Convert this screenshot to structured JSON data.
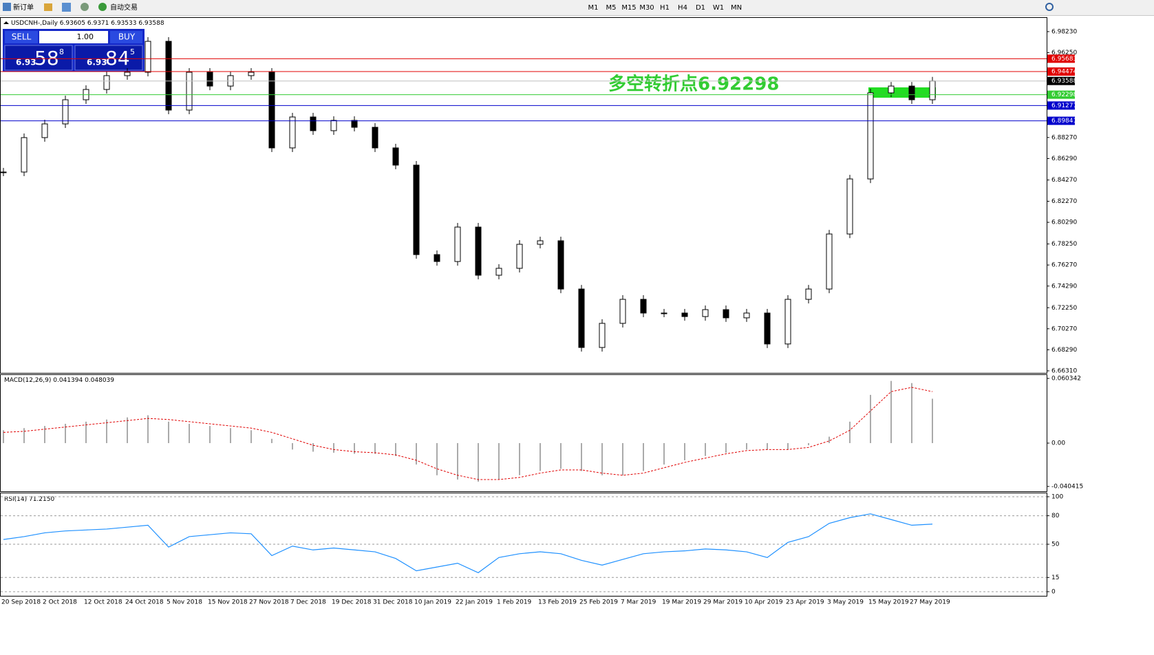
{
  "toolbar": {
    "new_order": "新订单",
    "auto_trading": "自动交易",
    "timeframes": [
      "M1",
      "M5",
      "M15",
      "M30",
      "H1",
      "H4",
      "D1",
      "W1",
      "MN"
    ]
  },
  "trade_panel": {
    "sell": "SELL",
    "lots": "1.00",
    "buy": "BUY",
    "sell_price": [
      "6.93",
      "58",
      "8"
    ],
    "buy_price": [
      "6.93",
      "84",
      "5"
    ]
  },
  "chart_data": {
    "type": "candlestick",
    "symbol": "USDCNH-,Daily",
    "ohlc": [
      6.93605,
      6.9371,
      6.93533,
      6.93588
    ],
    "annotation": "多空转折点6.92298",
    "closes": [
      6.8502,
      6.8826,
      6.8955,
      6.9182,
      6.9279,
      6.9409,
      6.9441,
      6.9732,
      6.9085,
      6.9441,
      6.9311,
      6.9409,
      6.9441,
      6.8729,
      6.902,
      6.8891,
      6.8988,
      6.8923,
      6.8729,
      6.8567,
      6.7725,
      6.766,
      6.7984,
      6.7531,
      6.7596,
      6.7822,
      6.7855,
      6.7401,
      6.6851,
      6.7078,
      6.7304,
      6.7175,
      6.7175,
      6.7142,
      6.7207,
      6.713,
      6.7175,
      6.6884,
      6.7304,
      6.7401,
      6.7919,
      6.8437,
      6.9247,
      6.9311,
      6.9182,
      6.93588
    ],
    "ylim": [
      6.6631,
      6.9823
    ],
    "yticks": [
      {
        "value": 6.9823,
        "label": "6.98230"
      },
      {
        "value": 6.9625,
        "label": "6.96250"
      },
      {
        "value": 6.8827,
        "label": "6.88270"
      },
      {
        "value": 6.8629,
        "label": "6.86290"
      },
      {
        "value": 6.8427,
        "label": "6.84270"
      },
      {
        "value": 6.8227,
        "label": "6.82270"
      },
      {
        "value": 6.8029,
        "label": "6.80290"
      },
      {
        "value": 6.7825,
        "label": "6.78250"
      },
      {
        "value": 6.7627,
        "label": "6.76270"
      },
      {
        "value": 6.7429,
        "label": "6.74290"
      },
      {
        "value": 6.7225,
        "label": "6.72250"
      },
      {
        "value": 6.7027,
        "label": "6.70270"
      },
      {
        "value": 6.6829,
        "label": "6.68290"
      },
      {
        "value": 6.6631,
        "label": "6.66310"
      }
    ],
    "price_lines": [
      {
        "value": 6.95683,
        "color": "#e00000"
      },
      {
        "value": 6.94474,
        "color": "#e00000"
      },
      {
        "value": 6.93588,
        "color": "#000000"
      },
      {
        "value": 6.92298,
        "color": "#33cc33"
      },
      {
        "value": 6.91277,
        "color": "#0000cc"
      },
      {
        "value": 6.89841,
        "color": "#0000cc"
      }
    ],
    "dates": [
      "20 Sep 2018",
      "2 Oct 2018",
      "12 Oct 2018",
      "24 Oct 2018",
      "5 Nov 2018",
      "15 Nov 2018",
      "27 Nov 2018",
      "7 Dec 2018",
      "19 Dec 2018",
      "31 Dec 2018",
      "10 Jan 2019",
      "22 Jan 2019",
      "1 Feb 2019",
      "13 Feb 2019",
      "25 Feb 2019",
      "7 Mar 2019",
      "19 Mar 2019",
      "29 Mar 2019",
      "10 Apr 2019",
      "23 Apr 2019",
      "3 May 2019",
      "15 May 2019",
      "27 May 2019"
    ],
    "macd": {
      "name": "MACD(12,26,9)",
      "main": 0.041394,
      "signal": 0.048039,
      "histogram": [
        0.012,
        0.014,
        0.016,
        0.018,
        0.02,
        0.022,
        0.024,
        0.026,
        0.02,
        0.018,
        0.016,
        0.014,
        0.012,
        0.004,
        -0.006,
        -0.008,
        -0.009,
        -0.01,
        -0.01,
        -0.012,
        -0.02,
        -0.03,
        -0.034,
        -0.036,
        -0.034,
        -0.03,
        -0.026,
        -0.024,
        -0.026,
        -0.03,
        -0.03,
        -0.026,
        -0.02,
        -0.016,
        -0.012,
        -0.009,
        -0.006,
        -0.006,
        -0.006,
        -0.002,
        0.006,
        0.02,
        0.045,
        0.058,
        0.056,
        0.041394
      ],
      "signal_line": [
        0.01,
        0.011,
        0.013,
        0.015,
        0.017,
        0.019,
        0.021,
        0.023,
        0.022,
        0.02,
        0.018,
        0.016,
        0.014,
        0.01,
        0.004,
        -0.002,
        -0.006,
        -0.008,
        -0.009,
        -0.011,
        -0.016,
        -0.024,
        -0.03,
        -0.034,
        -0.034,
        -0.032,
        -0.028,
        -0.025,
        -0.025,
        -0.028,
        -0.03,
        -0.028,
        -0.023,
        -0.018,
        -0.014,
        -0.01,
        -0.007,
        -0.006,
        -0.006,
        -0.004,
        0.002,
        0.012,
        0.03,
        0.048,
        0.052,
        0.048039
      ],
      "ylim": [
        -0.040415,
        0.060342
      ],
      "yticks": [
        0.060342,
        {
          "value": 0,
          "label": "0.00"
        },
        -0.040415
      ]
    },
    "rsi": {
      "name": "RSI(14)",
      "value": {
        "value": 71.215,
        "label": "71.2150"
      },
      "values": [
        55,
        58,
        62,
        64,
        65,
        66,
        68,
        70,
        47,
        58,
        60,
        62,
        61,
        38,
        48,
        44,
        46,
        44,
        42,
        35,
        22,
        26,
        30,
        20,
        36,
        40,
        42,
        40,
        33,
        28,
        34,
        40,
        42,
        43,
        45,
        44,
        42,
        36,
        52,
        58,
        72,
        78,
        82,
        76,
        70,
        71.215
      ],
      "ylim": [
        0,
        100
      ],
      "yticks": [
        100,
        80,
        50,
        15,
        0
      ]
    }
  }
}
